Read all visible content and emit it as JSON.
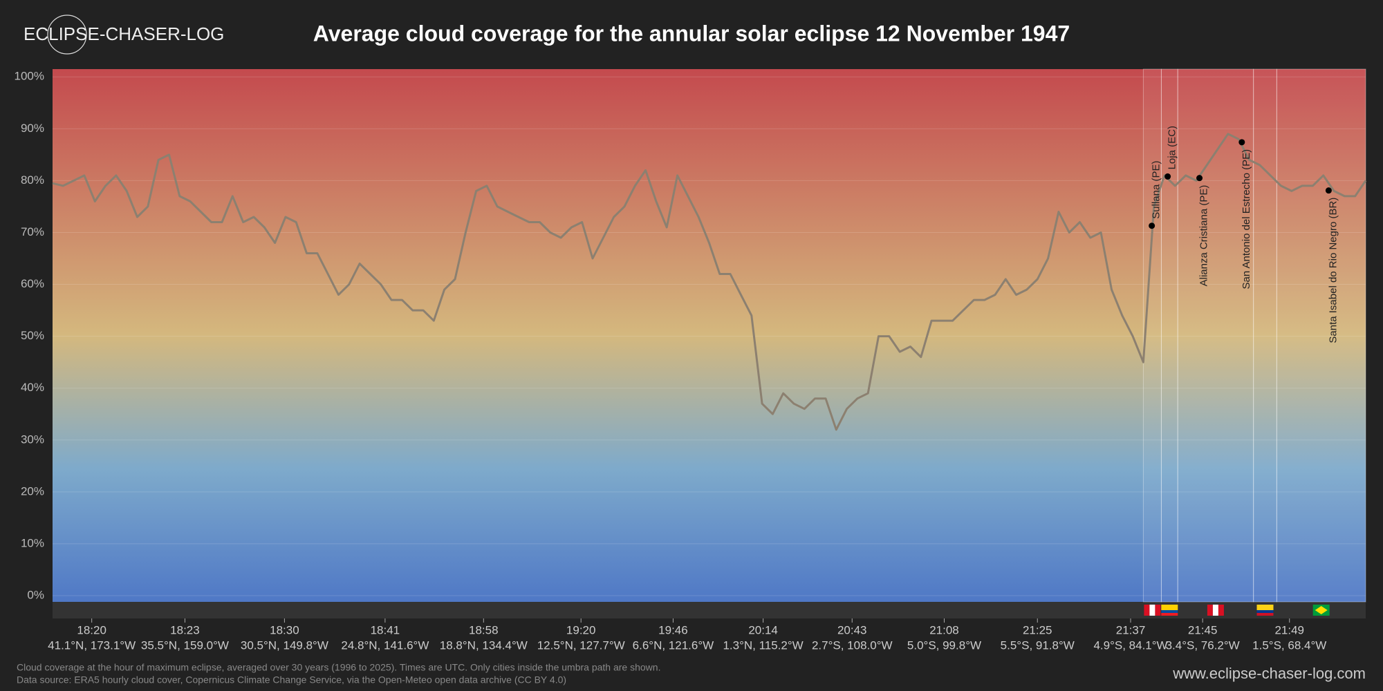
{
  "logo": "ECLIPSE-CHASER-LOG",
  "website": "www.eclipse-chaser-log.com",
  "footnotes": [
    "Cloud coverage at the hour of maximum eclipse, averaged over 30 years (1996 to 2025). Times are UTC. Only cities inside the umbra path are shown.",
    "Data source: ERA5 hourly cloud cover, Copernicus Climate Change Service, via the Open-Meteo open data archive (CC BY 4.0)"
  ],
  "chart_data": {
    "type": "line",
    "title": "Average cloud coverage for the annular solar eclipse 12 November 1947",
    "series": [
      {
        "color": "#8c8070",
        "values": [
          79.5,
          79,
          80,
          81,
          76,
          79,
          81,
          78,
          73,
          75,
          84,
          85,
          77,
          76,
          74,
          72,
          72,
          77,
          72,
          73,
          71,
          68,
          73,
          72,
          66,
          66,
          62,
          58,
          60,
          64,
          62,
          60,
          57,
          57,
          55,
          55,
          53,
          59,
          61,
          70,
          78,
          79,
          75,
          74,
          73,
          72,
          72,
          70,
          69,
          71,
          72,
          65,
          69,
          73,
          75,
          79,
          82,
          76,
          71,
          81,
          77,
          73,
          68,
          62,
          62,
          58,
          54,
          37,
          35,
          39,
          37,
          36,
          38,
          38,
          32,
          36,
          38,
          39,
          50,
          50,
          47,
          48,
          46,
          53,
          53,
          53,
          55,
          57,
          57,
          58,
          61,
          58,
          59,
          61,
          65,
          74,
          70,
          72,
          69,
          70,
          59,
          54,
          50,
          45,
          75,
          81,
          79,
          81,
          80,
          83,
          86,
          89,
          88,
          84,
          83,
          81,
          79,
          78,
          79,
          79,
          81,
          78,
          77,
          77,
          80
        ]
      }
    ],
    "xlim": [
      0,
      124
    ],
    "xticks": [
      {
        "value": 3.7,
        "label": "18:20",
        "coordinates": "41.1°N, 173.1°W"
      },
      {
        "value": 12.5,
        "label": "18:23",
        "coordinates": "35.5°N, 159.0°W"
      },
      {
        "value": 21.9,
        "label": "18:30",
        "coordinates": "30.5°N, 149.8°W"
      },
      {
        "value": 31.4,
        "label": "18:41",
        "coordinates": "24.8°N, 141.6°W"
      },
      {
        "value": 40.7,
        "label": "18:58",
        "coordinates": "18.8°N, 134.4°W"
      },
      {
        "value": 49.9,
        "label": "19:20",
        "coordinates": "12.5°N, 127.7°W"
      },
      {
        "value": 58.6,
        "label": "19:46",
        "coordinates": "6.6°N, 121.6°W"
      },
      {
        "value": 67.1,
        "label": "20:14",
        "coordinates": "1.3°N, 115.2°W"
      },
      {
        "value": 75.5,
        "label": "20:43",
        "coordinates": "2.7°S, 108.0°W"
      },
      {
        "value": 84.2,
        "label": "21:08",
        "coordinates": "5.0°S, 99.8°W"
      },
      {
        "value": 93,
        "label": "21:25",
        "coordinates": "5.5°S, 91.8°W"
      },
      {
        "value": 101.8,
        "label": "21:37",
        "coordinates": "4.9°S, 84.1°W"
      },
      {
        "value": 108.6,
        "label": "21:45",
        "coordinates": "3.4°S, 76.2°W"
      },
      {
        "value": 116.8,
        "label": "21:49",
        "coordinates": "1.5°S, 68.4°W"
      }
    ],
    "ylim": [
      -1.2,
      101.5
    ],
    "yticks": [
      {
        "value": 0,
        "label": "0%"
      },
      {
        "value": 10,
        "label": "10%"
      },
      {
        "value": 20,
        "label": "20%"
      },
      {
        "value": 30,
        "label": "30%"
      },
      {
        "value": 40,
        "label": "40%"
      },
      {
        "value": 50,
        "label": "50%"
      },
      {
        "value": 60,
        "label": "60%"
      },
      {
        "value": 70,
        "label": "70%"
      },
      {
        "value": 80,
        "label": "80%"
      },
      {
        "value": 90,
        "label": "90%"
      },
      {
        "value": 100,
        "label": "100%"
      }
    ],
    "grid": true,
    "gradient": [
      {
        "offset": 0,
        "color": "#c44a4e"
      },
      {
        "offset": 0.5,
        "color": "#d4b87e"
      },
      {
        "offset": 0.75,
        "color": "#7eaacb"
      },
      {
        "offset": 1,
        "color": "#4f78c6"
      }
    ],
    "annotations": [
      {
        "label": "Sullana (PE)",
        "x": 103.8,
        "value": 71.3,
        "side": "above"
      },
      {
        "label": "Loja (EC)",
        "x": 105.3,
        "value": 80.8,
        "side": "above"
      },
      {
        "label": "Alianza Cristiana (PE)",
        "x": 108.3,
        "value": 80.5,
        "side": "below"
      },
      {
        "label": "San Antonio del Estrecho (PE)",
        "x": 112.3,
        "value": 87.4,
        "side": "below"
      },
      {
        "label": "Santa Isabel do Rio Negro (BR)",
        "x": 120.5,
        "value": 78.1,
        "side": "below"
      }
    ],
    "regions": [
      {
        "start": 103,
        "end": 104.7,
        "stripes": [
          "#d91023",
          "#ffffff",
          "#d91023"
        ],
        "direction": "vertical"
      },
      {
        "start": 104.7,
        "end": 106.25,
        "stripes": [
          "#ffd100",
          "#ffd100",
          "#034ea2",
          "#ed1c24"
        ],
        "direction": "horizontal"
      },
      {
        "start": 106.25,
        "end": 113.4,
        "stripes": [
          "#d91023",
          "#ffffff",
          "#d91023"
        ],
        "direction": "vertical"
      },
      {
        "start": 113.4,
        "end": 115.6,
        "stripes": [
          "#fcd116",
          "#fcd116",
          "#003893",
          "#ce1126"
        ],
        "direction": "horizontal"
      },
      {
        "start": 115.6,
        "end": 124,
        "stripes": [
          "#009c3b"
        ],
        "direction": "horizontal",
        "diamond": "#ffdf00"
      }
    ]
  }
}
